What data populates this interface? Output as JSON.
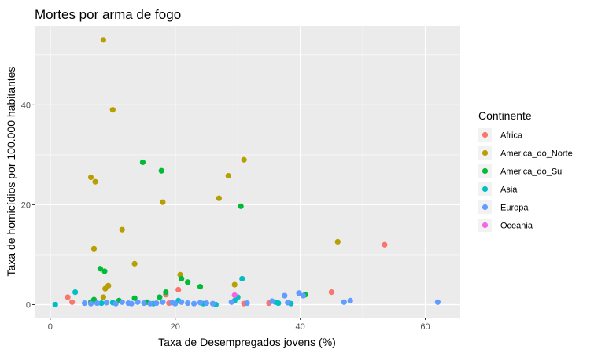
{
  "chart_data": {
    "type": "scatter",
    "title": "Mortes por arma de fogo",
    "xlabel": "Taxa de Desempregados jovens (%)",
    "ylabel": "Taxa de homicídios por 100.000 habitantes",
    "xlim": [
      -2.5,
      65.6
    ],
    "ylim": [
      -2.6,
      55.8
    ],
    "x_ticks": [
      0,
      20,
      40,
      60
    ],
    "y_ticks": [
      0,
      20,
      40
    ],
    "grid": true,
    "legend": {
      "title": "Continente",
      "placement": "right"
    },
    "series": [
      {
        "name": "Africa",
        "color": "#F8766D",
        "points": [
          [
            2.8,
            1.5
          ],
          [
            3.5,
            0.5
          ],
          [
            18.5,
            2.0
          ],
          [
            20.5,
            3.0
          ],
          [
            19.0,
            0.3
          ],
          [
            31.0,
            0.2
          ],
          [
            35.0,
            0.3
          ],
          [
            45.0,
            2.5
          ],
          [
            53.5,
            12.0
          ]
        ]
      },
      {
        "name": "America_do_Norte",
        "color": "#B79F00",
        "points": [
          [
            8.5,
            53.0
          ],
          [
            10.0,
            39.0
          ],
          [
            6.5,
            25.5
          ],
          [
            7.2,
            24.6
          ],
          [
            11.5,
            15.0
          ],
          [
            7.0,
            11.2
          ],
          [
            8.5,
            1.5
          ],
          [
            8.8,
            3.2
          ],
          [
            9.3,
            3.8
          ],
          [
            13.5,
            8.2
          ],
          [
            18.0,
            20.5
          ],
          [
            20.8,
            6.0
          ],
          [
            27.0,
            21.3
          ],
          [
            28.5,
            25.8
          ],
          [
            31.0,
            29.0
          ],
          [
            29.5,
            4.0
          ],
          [
            46.0,
            12.6
          ]
        ]
      },
      {
        "name": "America_do_Sul",
        "color": "#00BA38",
        "points": [
          [
            14.8,
            28.5
          ],
          [
            17.8,
            26.8
          ],
          [
            8.0,
            7.2
          ],
          [
            8.7,
            6.7
          ],
          [
            6.5,
            0.5
          ],
          [
            7.0,
            1.0
          ],
          [
            11.0,
            0.8
          ],
          [
            13.5,
            1.3
          ],
          [
            15.5,
            0.5
          ],
          [
            18.5,
            2.5
          ],
          [
            21.0,
            5.2
          ],
          [
            22.0,
            4.5
          ],
          [
            24.0,
            3.6
          ],
          [
            30.5,
            19.7
          ],
          [
            40.8,
            2.0
          ],
          [
            17.5,
            1.5
          ]
        ]
      },
      {
        "name": "Asia",
        "color": "#00BFC4",
        "points": [
          [
            0.8,
            0.0
          ],
          [
            4.0,
            2.5
          ],
          [
            8.2,
            0.3
          ],
          [
            10.0,
            0.4
          ],
          [
            16.5,
            0.2
          ],
          [
            20.5,
            0.8
          ],
          [
            24.5,
            0.2
          ],
          [
            26.5,
            0.0
          ],
          [
            29.5,
            0.8
          ],
          [
            30.0,
            1.5
          ],
          [
            30.7,
            5.2
          ],
          [
            36.0,
            0.5
          ],
          [
            36.5,
            0.3
          ],
          [
            38.5,
            0.2
          ]
        ]
      },
      {
        "name": "Europa",
        "color": "#619CFF",
        "points": [
          [
            5.5,
            0.3
          ],
          [
            6.5,
            0.2
          ],
          [
            7.5,
            0.3
          ],
          [
            9.0,
            0.4
          ],
          [
            10.5,
            0.2
          ],
          [
            11.5,
            0.5
          ],
          [
            12.5,
            0.3
          ],
          [
            13.0,
            0.2
          ],
          [
            14.0,
            0.5
          ],
          [
            15.0,
            0.3
          ],
          [
            16.0,
            0.2
          ],
          [
            17.0,
            0.3
          ],
          [
            18.0,
            0.5
          ],
          [
            19.5,
            0.4
          ],
          [
            20.0,
            0.2
          ],
          [
            21.0,
            0.5
          ],
          [
            22.0,
            0.3
          ],
          [
            23.0,
            0.2
          ],
          [
            24.0,
            0.4
          ],
          [
            25.0,
            0.3
          ],
          [
            26.0,
            0.2
          ],
          [
            29.0,
            0.5
          ],
          [
            31.5,
            0.3
          ],
          [
            35.5,
            0.7
          ],
          [
            37.5,
            1.8
          ],
          [
            38.0,
            0.4
          ],
          [
            39.8,
            2.3
          ],
          [
            40.5,
            1.8
          ],
          [
            47.0,
            0.5
          ],
          [
            48.0,
            0.8
          ],
          [
            62.0,
            0.5
          ]
        ]
      },
      {
        "name": "Oceania",
        "color": "#F564E3",
        "points": [
          [
            29.5,
            1.9
          ]
        ]
      }
    ]
  }
}
